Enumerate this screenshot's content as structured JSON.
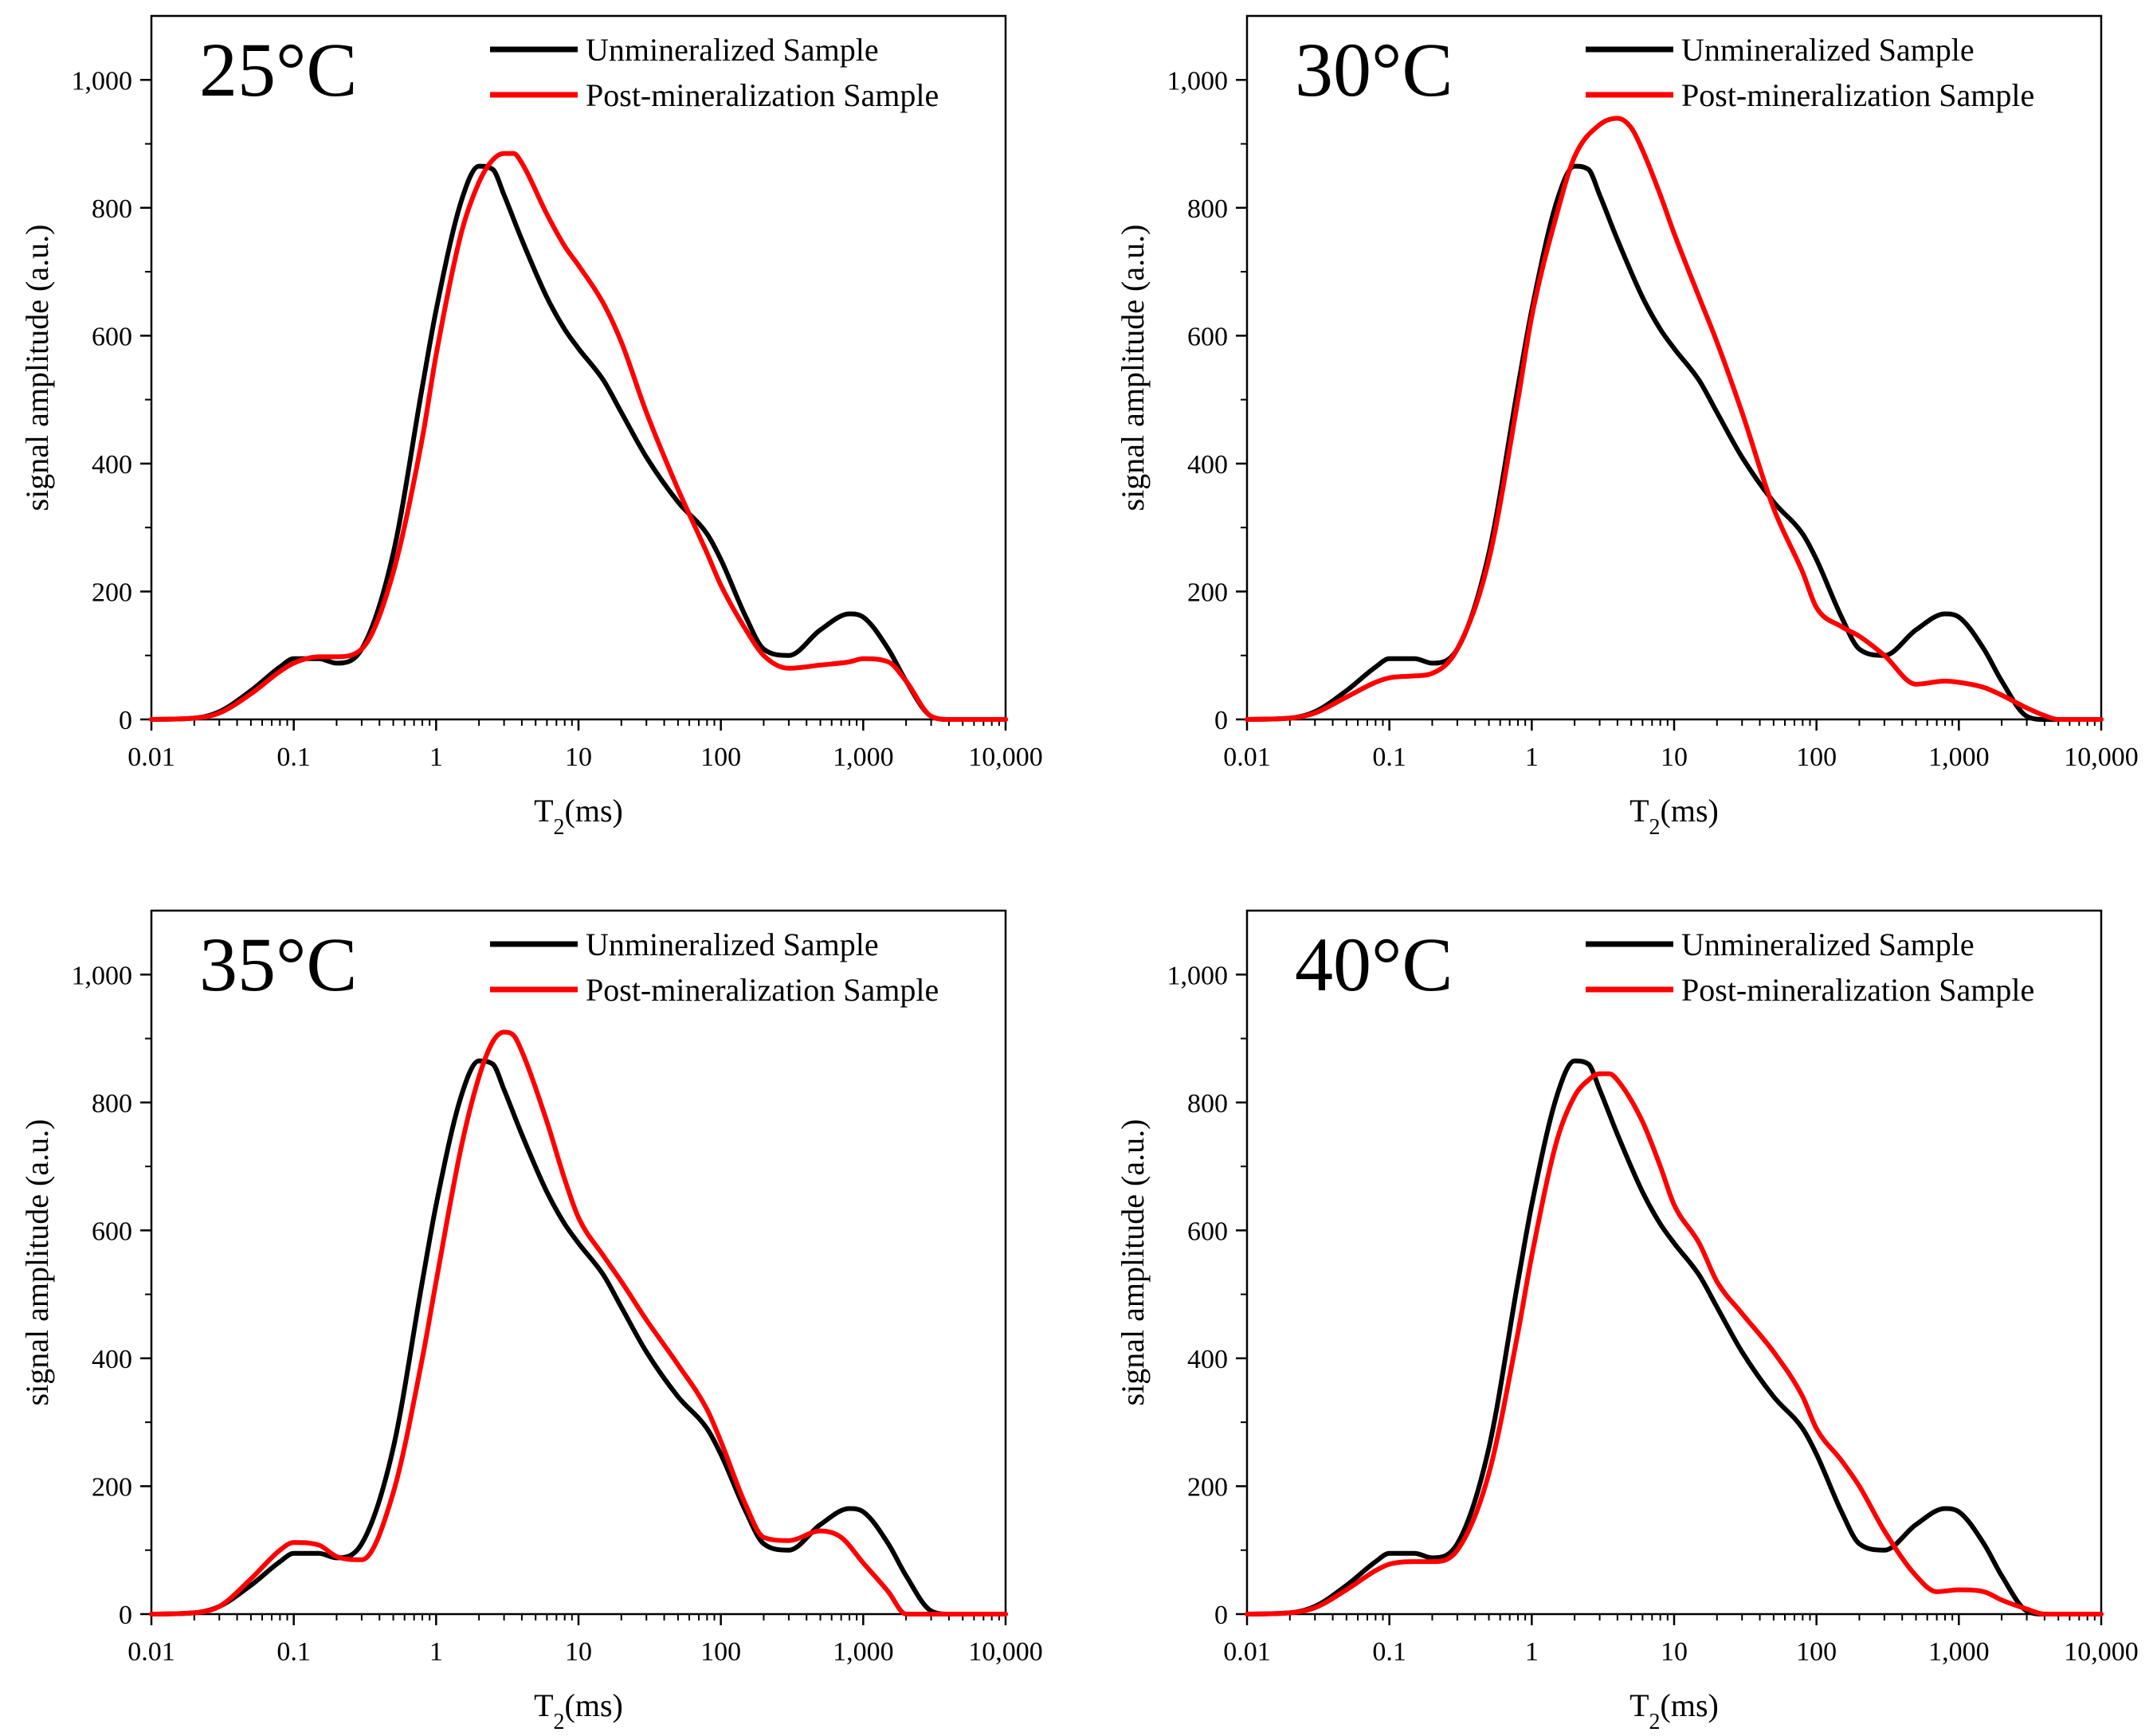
{
  "figure": {
    "colors": {
      "unmineralized": "#000000",
      "post": "#ff0000",
      "axis": "#000000"
    }
  },
  "chart_data": [
    {
      "type": "line",
      "panel_label": "25°C",
      "xlabel": "T₂(ms)",
      "ylabel": "signal amplitude (a.u.)",
      "xscale": "log",
      "xlim": [
        0.01,
        10000
      ],
      "ylim": [
        0,
        1100
      ],
      "xticks": [
        "0.01",
        "0.1",
        "1",
        "10",
        "100",
        "1,000",
        "10,000"
      ],
      "yticks": [
        "0",
        "200",
        "400",
        "600",
        "800",
        "1,000"
      ],
      "legend_position": "top-right",
      "grid": false,
      "series": [
        {
          "name": "Unmineralized Sample",
          "color": "#000000",
          "x": [
            0.01,
            0.02,
            0.03,
            0.05,
            0.08,
            0.1,
            0.15,
            0.2,
            0.3,
            0.5,
            0.8,
            1,
            1.5,
            2,
            2.5,
            3,
            4,
            6,
            8,
            10,
            15,
            20,
            30,
            50,
            80,
            100,
            150,
            200,
            300,
            500,
            800,
            1000,
            1500,
            2000,
            3000,
            4000,
            10000
          ],
          "y": [
            0,
            2,
            12,
            45,
            82,
            95,
            95,
            88,
            110,
            260,
            520,
            640,
            810,
            865,
            860,
            820,
            750,
            660,
            610,
            580,
            530,
            480,
            410,
            340,
            290,
            250,
            160,
            110,
            100,
            140,
            165,
            160,
            110,
            60,
            5,
            0,
            0
          ]
        },
        {
          "name": "Post-mineralization Sample",
          "color": "#ff0000",
          "x": [
            0.01,
            0.02,
            0.03,
            0.05,
            0.08,
            0.1,
            0.15,
            0.2,
            0.3,
            0.5,
            0.8,
            1,
            1.5,
            2,
            2.5,
            3,
            3.5,
            4,
            6,
            8,
            10,
            15,
            20,
            30,
            50,
            80,
            100,
            150,
            200,
            300,
            500,
            800,
            1000,
            1500,
            2000,
            3000,
            4000,
            10000
          ],
          "y": [
            0,
            2,
            10,
            40,
            75,
            88,
            98,
            98,
            110,
            230,
            440,
            570,
            760,
            840,
            875,
            885,
            885,
            870,
            790,
            740,
            710,
            650,
            590,
            480,
            360,
            260,
            210,
            140,
            100,
            80,
            85,
            90,
            95,
            90,
            60,
            5,
            0,
            0
          ]
        }
      ]
    },
    {
      "type": "line",
      "panel_label": "30°C",
      "xlabel": "T₂(ms)",
      "ylabel": "signal amplitude (a.u.)",
      "xscale": "log",
      "xlim": [
        0.01,
        10000
      ],
      "ylim": [
        0,
        1100
      ],
      "xticks": [
        "0.01",
        "0.1",
        "1",
        "10",
        "100",
        "1,000",
        "10,000"
      ],
      "yticks": [
        "0",
        "200",
        "400",
        "600",
        "800",
        "1,000"
      ],
      "legend_position": "top-right",
      "grid": false,
      "series": [
        {
          "name": "Unmineralized Sample",
          "color": "#000000",
          "x": [
            0.01,
            0.02,
            0.03,
            0.05,
            0.08,
            0.1,
            0.15,
            0.2,
            0.3,
            0.5,
            0.8,
            1,
            1.5,
            2,
            2.5,
            3,
            4,
            6,
            8,
            10,
            15,
            20,
            30,
            50,
            80,
            100,
            150,
            200,
            300,
            500,
            800,
            1000,
            1500,
            2000,
            3000,
            4000,
            10000
          ],
          "y": [
            0,
            2,
            12,
            45,
            82,
            95,
            95,
            88,
            110,
            260,
            520,
            640,
            810,
            865,
            860,
            820,
            750,
            660,
            610,
            580,
            530,
            480,
            410,
            340,
            290,
            250,
            160,
            110,
            100,
            140,
            165,
            160,
            110,
            60,
            5,
            0,
            0
          ]
        },
        {
          "name": "Post-mineralization Sample",
          "color": "#ff0000",
          "x": [
            0.01,
            0.02,
            0.03,
            0.05,
            0.08,
            0.1,
            0.15,
            0.2,
            0.3,
            0.5,
            0.8,
            1,
            1.5,
            2,
            3,
            4,
            5,
            6,
            8,
            10,
            15,
            20,
            30,
            50,
            80,
            100,
            150,
            200,
            300,
            500,
            800,
            1000,
            1500,
            2000,
            3000,
            4000,
            5000,
            10000
          ],
          "y": [
            0,
            2,
            10,
            35,
            58,
            65,
            68,
            72,
            110,
            250,
            500,
            630,
            790,
            880,
            930,
            940,
            925,
            890,
            820,
            760,
            660,
            590,
            480,
            330,
            230,
            175,
            145,
            130,
            100,
            55,
            60,
            58,
            50,
            38,
            18,
            6,
            0,
            0
          ]
        }
      ]
    },
    {
      "type": "line",
      "panel_label": "35°C",
      "xlabel": "T₂(ms)",
      "ylabel": "signal amplitude (a.u.)",
      "xscale": "log",
      "xlim": [
        0.01,
        10000
      ],
      "ylim": [
        0,
        1100
      ],
      "xticks": [
        "0.01",
        "0.1",
        "1",
        "10",
        "100",
        "1,000",
        "10,000"
      ],
      "yticks": [
        "0",
        "200",
        "400",
        "600",
        "800",
        "1,000"
      ],
      "legend_position": "top-right",
      "grid": false,
      "series": [
        {
          "name": "Unmineralized Sample",
          "color": "#000000",
          "x": [
            0.01,
            0.02,
            0.03,
            0.05,
            0.08,
            0.1,
            0.15,
            0.2,
            0.3,
            0.5,
            0.8,
            1,
            1.5,
            2,
            2.5,
            3,
            4,
            6,
            8,
            10,
            15,
            20,
            30,
            50,
            80,
            100,
            150,
            200,
            300,
            500,
            800,
            1000,
            1500,
            2000,
            3000,
            4000,
            10000
          ],
          "y": [
            0,
            2,
            12,
            45,
            82,
            95,
            95,
            88,
            110,
            260,
            520,
            640,
            810,
            865,
            860,
            820,
            750,
            660,
            610,
            580,
            530,
            480,
            410,
            340,
            290,
            250,
            160,
            110,
            100,
            140,
            165,
            160,
            110,
            60,
            5,
            0,
            0
          ]
        },
        {
          "name": "Post-mineralization Sample",
          "color": "#ff0000",
          "x": [
            0.01,
            0.02,
            0.03,
            0.05,
            0.08,
            0.1,
            0.15,
            0.2,
            0.3,
            0.5,
            0.8,
            1,
            1.5,
            2,
            2.5,
            3,
            3.5,
            4,
            6,
            8,
            10,
            15,
            20,
            30,
            50,
            80,
            100,
            150,
            200,
            300,
            500,
            700,
            1000,
            1500,
            2000,
            10000
          ],
          "y": [
            0,
            2,
            12,
            55,
            100,
            112,
            108,
            90,
            85,
            190,
            400,
            520,
            730,
            840,
            895,
            910,
            905,
            880,
            770,
            680,
            620,
            560,
            520,
            460,
            390,
            320,
            270,
            170,
            120,
            115,
            130,
            120,
            80,
            35,
            0,
            0
          ]
        }
      ]
    },
    {
      "type": "line",
      "panel_label": "40°C",
      "xlabel": "T₂(ms)",
      "ylabel": "signal amplitude (a.u.)",
      "xscale": "log",
      "xlim": [
        0.01,
        10000
      ],
      "ylim": [
        0,
        1100
      ],
      "xticks": [
        "0.01",
        "0.1",
        "1",
        "10",
        "100",
        "1,000",
        "10,000"
      ],
      "yticks": [
        "0",
        "200",
        "400",
        "600",
        "800",
        "1,000"
      ],
      "legend_position": "top-right",
      "grid": false,
      "series": [
        {
          "name": "Unmineralized Sample",
          "color": "#000000",
          "x": [
            0.01,
            0.02,
            0.03,
            0.05,
            0.08,
            0.1,
            0.15,
            0.2,
            0.3,
            0.5,
            0.8,
            1,
            1.5,
            2,
            2.5,
            3,
            4,
            6,
            8,
            10,
            15,
            20,
            30,
            50,
            80,
            100,
            150,
            200,
            300,
            500,
            800,
            1000,
            1500,
            2000,
            3000,
            4000,
            10000
          ],
          "y": [
            0,
            2,
            12,
            45,
            82,
            95,
            95,
            88,
            110,
            260,
            520,
            640,
            810,
            865,
            860,
            820,
            750,
            660,
            610,
            580,
            530,
            480,
            410,
            340,
            290,
            250,
            160,
            110,
            100,
            140,
            165,
            160,
            110,
            60,
            5,
            0,
            0
          ]
        },
        {
          "name": "Post-mineralization Sample",
          "color": "#ff0000",
          "x": [
            0.01,
            0.02,
            0.03,
            0.05,
            0.08,
            0.1,
            0.15,
            0.2,
            0.3,
            0.5,
            0.8,
            1,
            1.5,
            2,
            2.5,
            3,
            3.5,
            4,
            6,
            8,
            10,
            15,
            20,
            30,
            50,
            80,
            100,
            150,
            200,
            300,
            500,
            700,
            1000,
            1500,
            2000,
            3000,
            4000,
            10000
          ],
          "y": [
            0,
            2,
            10,
            38,
            68,
            78,
            82,
            82,
            100,
            220,
            440,
            560,
            740,
            810,
            835,
            845,
            845,
            835,
            770,
            700,
            640,
            580,
            520,
            470,
            410,
            340,
            290,
            240,
            200,
            130,
            60,
            35,
            38,
            35,
            22,
            8,
            0,
            0
          ]
        }
      ]
    }
  ]
}
